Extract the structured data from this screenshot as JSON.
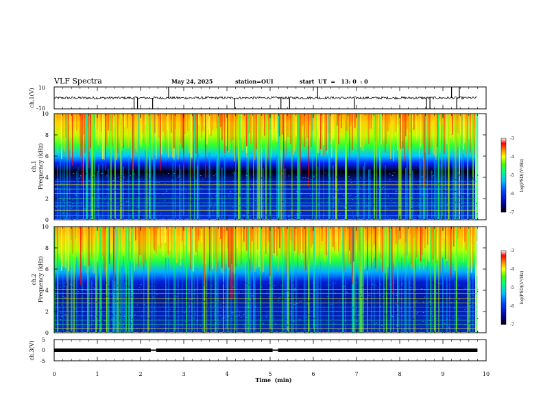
{
  "header": {
    "title": "VLF Spectra",
    "date": "May 24, 2025",
    "station": "station=OUI",
    "start": "start  UT  =   13: 0  : 0"
  },
  "chart_data": [
    {
      "type": "line",
      "panel": "ch1-waveform",
      "ylabel": "ch.1(V)",
      "ylim": [
        -10,
        10
      ],
      "y_ticks": [
        "10",
        "-10"
      ],
      "xlim": [
        0,
        10
      ],
      "baseline": 0,
      "spikes_down_min": [
        1.85,
        1.93,
        2.28,
        4.18,
        5.25,
        5.45,
        6.95,
        8.62,
        8.7,
        9.32
      ],
      "spikes_up_min": [
        2.65,
        6.1,
        9.2,
        9.38
      ]
    },
    {
      "type": "heatmap",
      "panel": "ch1-spectrogram",
      "ylabel": "ch.1\nFrequency  (kHz)",
      "ylim": [
        0,
        10
      ],
      "y_ticks": [
        "0",
        "2",
        "4",
        "6",
        "8",
        "10"
      ],
      "xlim": [
        0,
        10
      ],
      "colorbar": {
        "label": "log(PSD)(V²/Hz)",
        "range": [
          -7,
          -3
        ],
        "ticks": [
          "-3",
          "-4",
          "-5",
          "-6",
          "-7"
        ]
      },
      "noise_floor_khz": 4.5,
      "tone_lines_khz": [
        0.4,
        0.9,
        1.3,
        1.6,
        2.0,
        2.5,
        2.9,
        3.3,
        3.6
      ]
    },
    {
      "type": "heatmap",
      "panel": "ch2-spectrogram",
      "ylabel": "ch.2\nFrequency  (kHz)",
      "ylim": [
        0,
        10
      ],
      "y_ticks": [
        "0",
        "2",
        "4",
        "6",
        "8",
        "10"
      ],
      "xlim": [
        0,
        10
      ],
      "colorbar": {
        "label": "log(PSD)(V²/Hz)",
        "range": [
          -7,
          -3
        ],
        "ticks": [
          "-3",
          "-4",
          "-5",
          "-6",
          "-7"
        ]
      },
      "noise_floor_khz": 4.8,
      "tone_lines_khz": [
        0.4,
        0.8,
        1.2,
        1.6,
        2.0,
        2.4,
        2.8,
        3.2,
        3.7,
        4.1
      ]
    },
    {
      "type": "line",
      "panel": "ch3-waveform",
      "ylabel": "ch.3(V)",
      "ylim": [
        -5,
        5
      ],
      "y_ticks": [
        "5",
        "0",
        "-5"
      ],
      "xlim": [
        0,
        10
      ],
      "baseline": 0,
      "gaps_min": [
        2.3,
        5.12
      ]
    }
  ],
  "x_axis": {
    "label": "Time  (min)",
    "ticks": [
      "0",
      "1",
      "2",
      "3",
      "4",
      "5",
      "6",
      "7",
      "8",
      "9",
      "10"
    ]
  }
}
